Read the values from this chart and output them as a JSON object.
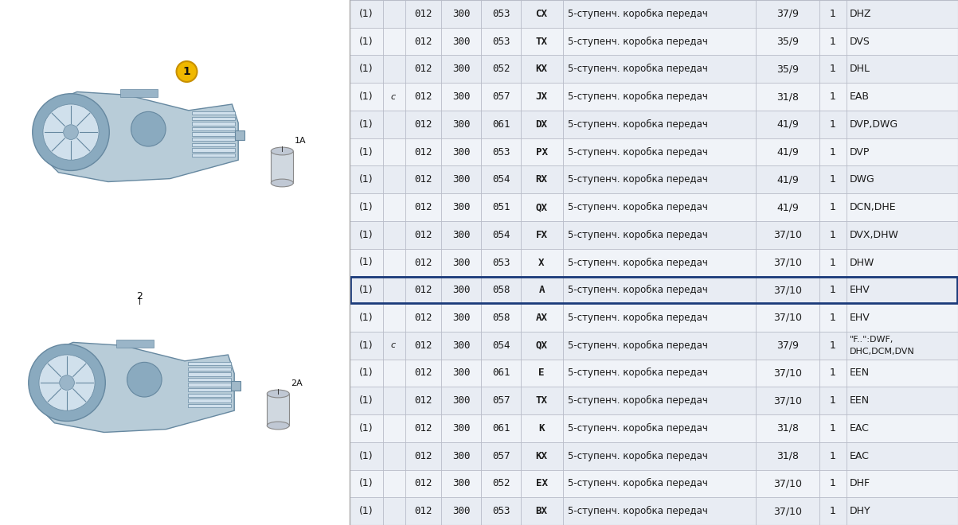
{
  "rows": [
    {
      "c1": "(1)",
      "c2": "",
      "n1": "012",
      "n2": "300",
      "n3": "053",
      "n4": "CX",
      "desc": "5-ступенч. коробка передач",
      "ratio": "37/9",
      "one": "1",
      "code": "DHZ",
      "highlight": false
    },
    {
      "c1": "(1)",
      "c2": "",
      "n1": "012",
      "n2": "300",
      "n3": "053",
      "n4": "TX",
      "desc": "5-ступенч. коробка передач",
      "ratio": "35/9",
      "one": "1",
      "code": "DVS",
      "highlight": false
    },
    {
      "c1": "(1)",
      "c2": "",
      "n1": "012",
      "n2": "300",
      "n3": "052",
      "n4": "KX",
      "desc": "5-ступенч. коробка передач",
      "ratio": "35/9",
      "one": "1",
      "code": "DHL",
      "highlight": false
    },
    {
      "c1": "(1)",
      "c2": "c",
      "n1": "012",
      "n2": "300",
      "n3": "057",
      "n4": "JX",
      "desc": "5-ступенч. коробка передач",
      "ratio": "31/8",
      "one": "1",
      "code": "EAB",
      "highlight": false
    },
    {
      "c1": "(1)",
      "c2": "",
      "n1": "012",
      "n2": "300",
      "n3": "061",
      "n4": "DX",
      "desc": "5-ступенч. коробка передач",
      "ratio": "41/9",
      "one": "1",
      "code": "DVP,DWG",
      "highlight": false
    },
    {
      "c1": "(1)",
      "c2": "",
      "n1": "012",
      "n2": "300",
      "n3": "053",
      "n4": "PX",
      "desc": "5-ступенч. коробка передач",
      "ratio": "41/9",
      "one": "1",
      "code": "DVP",
      "highlight": false
    },
    {
      "c1": "(1)",
      "c2": "",
      "n1": "012",
      "n2": "300",
      "n3": "054",
      "n4": "RX",
      "desc": "5-ступенч. коробка передач",
      "ratio": "41/9",
      "one": "1",
      "code": "DWG",
      "highlight": false
    },
    {
      "c1": "(1)",
      "c2": "",
      "n1": "012",
      "n2": "300",
      "n3": "051",
      "n4": "QX",
      "desc": "5-ступенч. коробка передач",
      "ratio": "41/9",
      "one": "1",
      "code": "DCN,DHE",
      "highlight": false
    },
    {
      "c1": "(1)",
      "c2": "",
      "n1": "012",
      "n2": "300",
      "n3": "054",
      "n4": "FX",
      "desc": "5-ступенч. коробка передач",
      "ratio": "37/10",
      "one": "1",
      "code": "DVX,DHW",
      "highlight": false
    },
    {
      "c1": "(1)",
      "c2": "",
      "n1": "012",
      "n2": "300",
      "n3": "053",
      "n4": "X",
      "desc": "5-ступенч. коробка передач",
      "ratio": "37/10",
      "one": "1",
      "code": "DHW",
      "highlight": false
    },
    {
      "c1": "(1)",
      "c2": "",
      "n1": "012",
      "n2": "300",
      "n3": "058",
      "n4": "A",
      "desc": "5-ступенч. коробка передач",
      "ratio": "37/10",
      "one": "1",
      "code": "EHV",
      "highlight": true
    },
    {
      "c1": "(1)",
      "c2": "",
      "n1": "012",
      "n2": "300",
      "n3": "058",
      "n4": "AX",
      "desc": "5-ступенч. коробка передач",
      "ratio": "37/10",
      "one": "1",
      "code": "EHV",
      "highlight": false
    },
    {
      "c1": "(1)",
      "c2": "c",
      "n1": "012",
      "n2": "300",
      "n3": "054",
      "n4": "QX",
      "desc": "5-ступенч. коробка передач",
      "ratio": "37/9",
      "one": "1",
      "code": "\"F..\":DWF,\nDHC,DCM,DVN",
      "highlight": false
    },
    {
      "c1": "(1)",
      "c2": "",
      "n1": "012",
      "n2": "300",
      "n3": "061",
      "n4": "E",
      "desc": "5-ступенч. коробка передач",
      "ratio": "37/10",
      "one": "1",
      "code": "EEN",
      "highlight": false
    },
    {
      "c1": "(1)",
      "c2": "",
      "n1": "012",
      "n2": "300",
      "n3": "057",
      "n4": "TX",
      "desc": "5-ступенч. коробка передач",
      "ratio": "37/10",
      "one": "1",
      "code": "EEN",
      "highlight": false
    },
    {
      "c1": "(1)",
      "c2": "",
      "n1": "012",
      "n2": "300",
      "n3": "061",
      "n4": "K",
      "desc": "5-ступенч. коробка передач",
      "ratio": "31/8",
      "one": "1",
      "code": "EAC",
      "highlight": false
    },
    {
      "c1": "(1)",
      "c2": "",
      "n1": "012",
      "n2": "300",
      "n3": "057",
      "n4": "KX",
      "desc": "5-ступенч. коробка передач",
      "ratio": "31/8",
      "one": "1",
      "code": "EAC",
      "highlight": false
    },
    {
      "c1": "(1)",
      "c2": "",
      "n1": "012",
      "n2": "300",
      "n3": "052",
      "n4": "EX",
      "desc": "5-ступенч. коробка передач",
      "ratio": "37/10",
      "one": "1",
      "code": "DHF",
      "highlight": false
    },
    {
      "c1": "(1)",
      "c2": "",
      "n1": "012",
      "n2": "300",
      "n3": "053",
      "n4": "BX",
      "desc": "5-ступенч. коробка передач",
      "ratio": "37/10",
      "one": "1",
      "code": "DHY",
      "highlight": false
    }
  ],
  "row_bg_light": "#e8ecf3",
  "row_bg_white": "#f0f3f8",
  "highlight_border": "#1a3a7a",
  "text_color": "#1a1a1a",
  "divider_color": "#b8bcc8",
  "image_bg": "#ffffff",
  "font_size": 9.0
}
